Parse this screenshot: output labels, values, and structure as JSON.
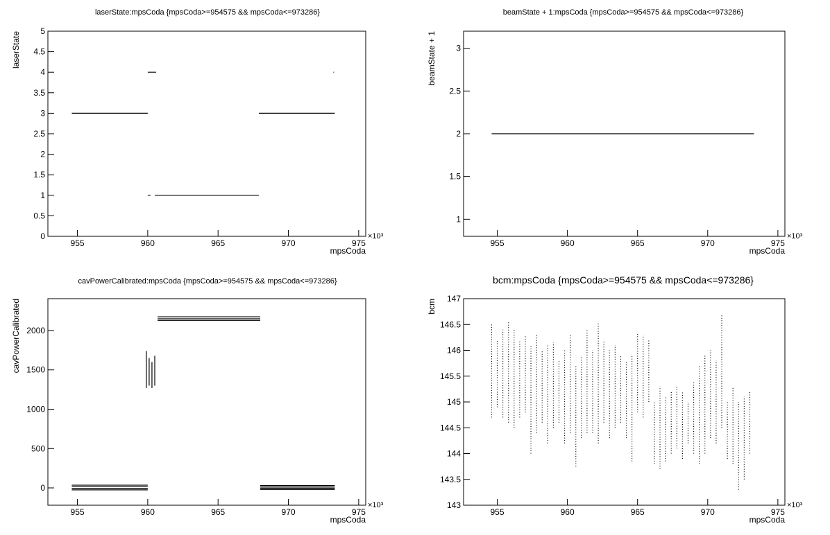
{
  "chart_data": [
    {
      "type": "line",
      "title": "laserState:mpsCoda {mpsCoda>=954575 && mpsCoda<=973286}",
      "xlabel": "mpsCoda",
      "ylabel": "laserState",
      "x_multiplier_label": "×10³",
      "title_size": "small",
      "xlim": [
        952.9,
        975.5
      ],
      "xticks": [
        955,
        960,
        965,
        970,
        975
      ],
      "ylim": [
        0,
        5
      ],
      "yticks": [
        0,
        0.5,
        1,
        1.5,
        2,
        2.5,
        3,
        3.5,
        4,
        4.5,
        5
      ],
      "series": [
        {
          "color": "#000000",
          "x": [
            954.6,
            960.0,
            null,
            960.0,
            960.6,
            null,
            960.0,
            960.2,
            null,
            960.5,
            967.9,
            null,
            967.9,
            973.3,
            null,
            973.2,
            973.25
          ],
          "values": [
            3,
            3,
            null,
            4,
            4,
            null,
            1,
            1,
            null,
            1,
            1,
            null,
            3,
            3,
            null,
            4,
            4
          ]
        }
      ]
    },
    {
      "type": "line",
      "title": "beamState + 1:mpsCoda {mpsCoda>=954575 && mpsCoda<=973286}",
      "xlabel": "mpsCoda",
      "ylabel": "beamState + 1",
      "x_multiplier_label": "×10³",
      "title_size": "small",
      "xlim": [
        952.6,
        975.5
      ],
      "xticks": [
        955,
        960,
        965,
        970,
        975
      ],
      "ylim": [
        0.8,
        3.2
      ],
      "yticks": [
        1,
        1.5,
        2,
        2.5,
        3
      ],
      "series": [
        {
          "color": "#000000",
          "x": [
            954.6,
            973.3
          ],
          "values": [
            2,
            2
          ]
        }
      ]
    },
    {
      "type": "line",
      "title": "cavPowerCalibrated:mpsCoda {mpsCoda>=954575 && mpsCoda<=973286}",
      "xlabel": "mpsCoda",
      "ylabel": "cavPowerCalibrated",
      "x_multiplier_label": "×10³",
      "title_size": "small",
      "xlim": [
        952.9,
        975.5
      ],
      "xticks": [
        955,
        960,
        965,
        970,
        975
      ],
      "ylim": [
        -220,
        2405
      ],
      "yticks": [
        0,
        500,
        1000,
        1500,
        2000
      ],
      "series": [
        {
          "color": "#000000",
          "x": [
            954.6,
            960.0,
            null,
            954.6,
            960.0,
            null,
            954.6,
            960.0,
            null,
            954.6,
            960.0,
            null,
            959.9,
            959.9,
            null,
            960.1,
            960.1,
            null,
            960.3,
            960.3,
            null,
            960.5,
            960.5,
            null,
            960.7,
            968.0,
            null,
            960.7,
            968.0,
            null,
            960.7,
            968.0,
            null,
            968.0,
            973.3,
            null,
            968.0,
            973.3,
            null,
            968.0,
            973.3,
            null,
            968.0,
            973.3
          ],
          "values": [
            35,
            35,
            null,
            15,
            15,
            null,
            -5,
            -5,
            null,
            -25,
            -25,
            null,
            1270,
            1740,
            null,
            1300,
            1650,
            null,
            1270,
            1600,
            null,
            1300,
            1680,
            null,
            2175,
            2175,
            null,
            2150,
            2150,
            null,
            2130,
            2130,
            null,
            30,
            30,
            null,
            10,
            10,
            null,
            -5,
            -5,
            null,
            -20,
            -20
          ]
        }
      ]
    },
    {
      "type": "range",
      "title": "bcm:mpsCoda {mpsCoda>=954575 && mpsCoda<=973286}",
      "xlabel": "mpsCoda",
      "ylabel": "bcm",
      "x_multiplier_label": "×10³",
      "title_size": "large",
      "xlim": [
        952.6,
        975.5
      ],
      "xticks": [
        955,
        960,
        965,
        970,
        975
      ],
      "ylim": [
        143,
        147
      ],
      "yticks": [
        143,
        143.5,
        144,
        144.5,
        145,
        145.5,
        146,
        146.5,
        147
      ],
      "series": [
        {
          "color": "#000000",
          "x": [
            954.6,
            955.0,
            955.4,
            955.8,
            956.2,
            956.6,
            957.0,
            957.4,
            957.8,
            958.2,
            958.6,
            959.0,
            959.4,
            959.8,
            960.2,
            960.6,
            961.0,
            961.4,
            961.8,
            962.2,
            962.6,
            963.0,
            963.4,
            963.8,
            964.2,
            964.6,
            965.0,
            965.4,
            965.8,
            966.2,
            966.6,
            967.0,
            967.4,
            967.8,
            968.2,
            968.6,
            969.0,
            969.4,
            969.8,
            970.2,
            970.6,
            971.0,
            971.4,
            971.8,
            972.2,
            972.6,
            973.0
          ],
          "low": [
            144.7,
            144.9,
            144.7,
            144.6,
            144.5,
            144.7,
            144.8,
            144.0,
            144.4,
            144.6,
            144.2,
            144.5,
            144.6,
            144.2,
            144.4,
            143.75,
            144.3,
            144.4,
            144.4,
            144.2,
            144.6,
            144.3,
            144.5,
            144.6,
            144.3,
            143.85,
            144.8,
            144.7,
            145.0,
            143.8,
            143.7,
            143.85,
            144.0,
            144.1,
            143.9,
            144.2,
            144.0,
            143.8,
            144.0,
            144.3,
            144.2,
            144.5,
            143.9,
            143.8,
            143.3,
            143.5,
            144.0
          ],
          "high": [
            146.5,
            146.2,
            146.4,
            146.55,
            146.4,
            146.2,
            146.3,
            146.1,
            146.3,
            146.0,
            146.1,
            146.15,
            145.8,
            146.0,
            146.3,
            145.7,
            145.9,
            146.4,
            146.0,
            146.55,
            146.2,
            146.0,
            146.1,
            145.9,
            145.8,
            145.9,
            146.35,
            146.3,
            146.2,
            145.0,
            145.3,
            145.1,
            145.2,
            145.3,
            145.2,
            145.0,
            145.4,
            145.7,
            145.9,
            146.0,
            145.8,
            146.7,
            145.0,
            145.3,
            145.0,
            145.1,
            145.2
          ]
        }
      ]
    }
  ]
}
